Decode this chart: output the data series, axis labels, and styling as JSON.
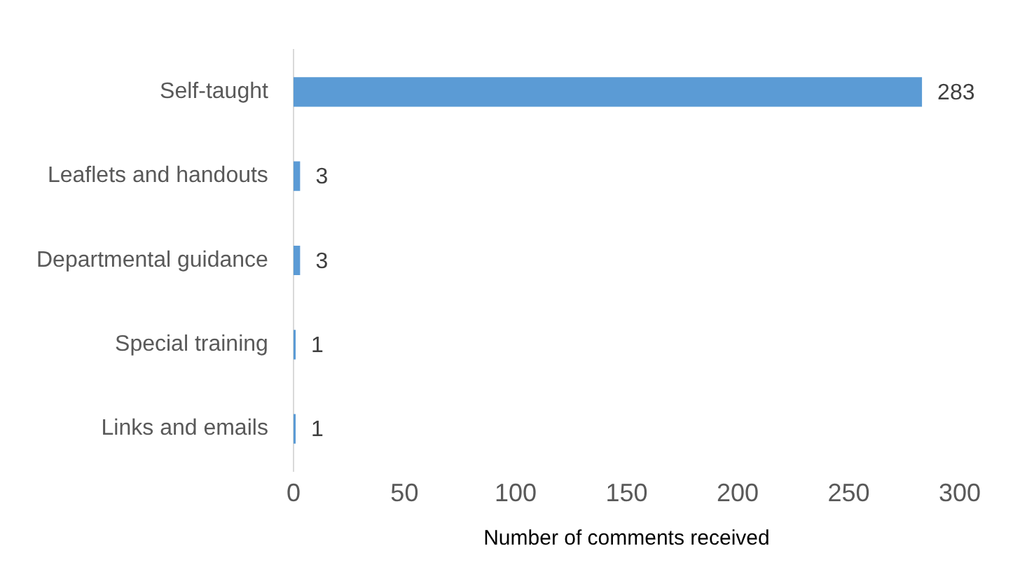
{
  "chart_data": {
    "type": "bar",
    "orientation": "horizontal",
    "xlabel": "Number of comments received",
    "categories": [
      "Self-taught",
      "Leaflets and handouts",
      "Departmental guidance",
      "Special training",
      "Links and emails"
    ],
    "values": [
      283,
      3,
      3,
      1,
      1
    ],
    "color": "#5b9bd5",
    "xlim": [
      0,
      300
    ],
    "xticks": [
      0,
      50,
      100,
      150,
      200,
      250,
      300
    ],
    "grid": false,
    "legend": false,
    "data_labels": true
  }
}
